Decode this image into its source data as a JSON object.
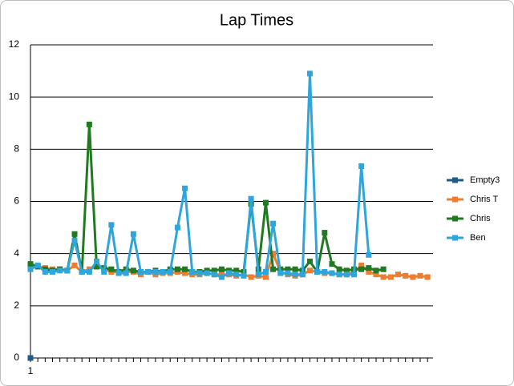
{
  "chart_data": {
    "type": "line",
    "title": "Lap Times",
    "categories": [
      "1",
      null,
      null,
      null,
      null,
      null,
      null,
      null,
      null,
      null,
      null,
      null,
      null,
      null,
      null,
      null,
      null,
      null,
      null,
      null,
      null,
      null,
      null,
      null,
      null,
      null,
      null,
      null,
      null,
      null,
      null,
      null,
      null,
      null,
      null,
      null,
      null,
      null,
      null,
      null,
      null,
      null,
      null,
      null,
      null,
      null,
      null,
      null,
      null,
      null,
      null,
      null,
      null,
      null,
      null
    ],
    "series": [
      {
        "name": "Empty3",
        "color": "#1f5c87",
        "values": [
          0,
          null,
          null,
          null,
          null,
          null,
          null,
          null,
          null,
          null,
          null,
          null,
          null,
          null,
          null,
          null,
          null,
          null,
          null,
          null,
          null,
          null,
          null,
          null,
          null,
          null,
          null,
          null,
          null,
          null,
          null,
          null,
          null,
          null,
          null,
          null,
          null,
          null,
          null,
          null,
          null,
          null,
          null,
          null,
          null,
          null,
          null,
          null,
          null,
          null,
          null,
          null,
          null,
          null,
          null
        ]
      },
      {
        "name": "Chris T",
        "color": "#ed7d31",
        "values": [
          3.6,
          3.5,
          3.45,
          3.4,
          3.4,
          3.35,
          3.55,
          3.3,
          3.4,
          3.5,
          3.4,
          3.3,
          3.3,
          3.3,
          3.3,
          3.2,
          3.3,
          3.2,
          3.25,
          3.25,
          3.3,
          3.25,
          3.2,
          3.2,
          3.25,
          3.2,
          3.2,
          3.2,
          3.15,
          3.2,
          3.1,
          3.15,
          3.1,
          4.0,
          3.3,
          3.2,
          3.15,
          3.2,
          3.35,
          3.3,
          3.25,
          3.25,
          3.2,
          3.2,
          3.3,
          3.55,
          3.3,
          3.2,
          3.1,
          3.1,
          3.2,
          3.15,
          3.1,
          3.15,
          3.1
        ]
      },
      {
        "name": "Chris",
        "color": "#217a21",
        "values": [
          3.6,
          3.5,
          3.4,
          3.35,
          3.4,
          3.35,
          4.75,
          3.3,
          8.95,
          3.5,
          3.45,
          3.4,
          3.3,
          3.4,
          3.35,
          3.3,
          3.3,
          3.35,
          3.3,
          3.4,
          3.4,
          3.4,
          3.3,
          3.3,
          3.35,
          3.35,
          3.4,
          3.35,
          3.35,
          3.3,
          5.9,
          3.4,
          5.95,
          3.4,
          3.4,
          3.4,
          3.4,
          3.35,
          3.7,
          3.3,
          4.8,
          3.6,
          3.4,
          3.35,
          3.4,
          3.4,
          3.45,
          3.35,
          3.4,
          null,
          null,
          null,
          null,
          null,
          null
        ]
      },
      {
        "name": "Ben",
        "color": "#2ea6db",
        "values": [
          3.4,
          3.55,
          3.3,
          3.3,
          3.35,
          3.35,
          4.5,
          3.3,
          3.3,
          3.7,
          3.3,
          5.1,
          3.25,
          3.25,
          4.75,
          3.3,
          3.3,
          3.3,
          3.3,
          3.3,
          5.0,
          6.5,
          3.3,
          3.25,
          3.25,
          3.2,
          3.1,
          3.25,
          3.2,
          3.15,
          6.1,
          3.2,
          3.3,
          5.15,
          3.25,
          3.25,
          3.2,
          3.2,
          10.9,
          3.3,
          3.3,
          3.25,
          3.2,
          3.2,
          3.2,
          7.35,
          3.95,
          null,
          null,
          null,
          null,
          null,
          null,
          null,
          null
        ]
      }
    ],
    "ylim": [
      0,
      12
    ],
    "yticks": [
      0,
      2,
      4,
      6,
      8,
      10,
      12
    ],
    "grid": true,
    "legend": "right"
  }
}
